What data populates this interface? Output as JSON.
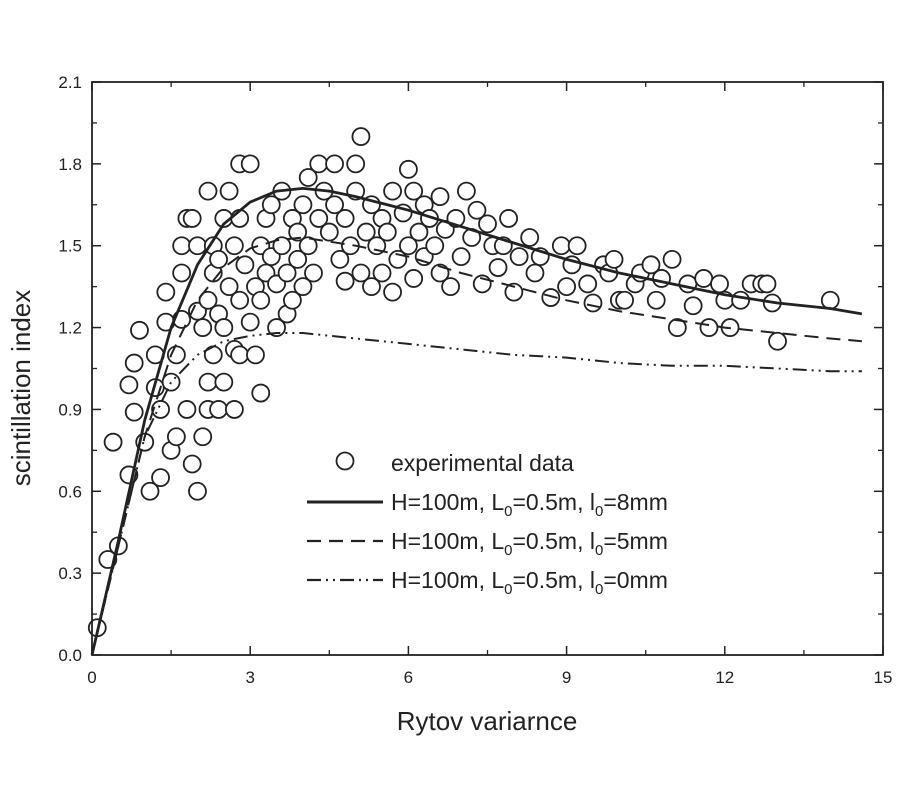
{
  "chart_data": {
    "type": "scatter",
    "xlabel": "Rytov variarnce",
    "ylabel": "scintillation index",
    "xlim": [
      0,
      15
    ],
    "ylim": [
      0,
      2.1
    ],
    "xticks": [
      0,
      3,
      6,
      9,
      12,
      15
    ],
    "yticks": [
      0.0,
      0.3,
      0.6,
      0.9,
      1.2,
      1.5,
      1.8,
      2.1
    ],
    "xtick_labels": [
      "0",
      "3",
      "6",
      "9",
      "12",
      "15"
    ],
    "ytick_labels": [
      "0.0",
      "0.3",
      "0.6",
      "0.9",
      "1.2",
      "1.5",
      "1.8",
      "2.1"
    ],
    "grid": false,
    "legend_position": "bottom-center",
    "series": [
      {
        "name": "experimental data",
        "kind": "markers",
        "marker": "open-circle",
        "points": [
          [
            0.1,
            0.1
          ],
          [
            0.3,
            0.35
          ],
          [
            0.4,
            0.78
          ],
          [
            0.5,
            0.4
          ],
          [
            0.7,
            0.66
          ],
          [
            0.7,
            0.99
          ],
          [
            0.8,
            0.89
          ],
          [
            0.8,
            1.07
          ],
          [
            0.9,
            1.19
          ],
          [
            1.0,
            0.78
          ],
          [
            1.1,
            0.6
          ],
          [
            1.2,
            0.98
          ],
          [
            1.2,
            1.1
          ],
          [
            1.3,
            0.65
          ],
          [
            1.3,
            0.9
          ],
          [
            1.4,
            1.33
          ],
          [
            1.4,
            1.22
          ],
          [
            1.5,
            0.75
          ],
          [
            1.5,
            1.0
          ],
          [
            1.6,
            1.1
          ],
          [
            1.6,
            0.8
          ],
          [
            1.7,
            1.23
          ],
          [
            1.7,
            1.4
          ],
          [
            1.7,
            1.5
          ],
          [
            1.8,
            0.9
          ],
          [
            1.8,
            1.6
          ],
          [
            1.9,
            0.7
          ],
          [
            1.9,
            1.6
          ],
          [
            2.0,
            0.6
          ],
          [
            2.0,
            1.26
          ],
          [
            2.0,
            1.5
          ],
          [
            2.1,
            0.8
          ],
          [
            2.1,
            1.2
          ],
          [
            2.2,
            0.9
          ],
          [
            2.2,
            1.0
          ],
          [
            2.2,
            1.3
          ],
          [
            2.2,
            1.7
          ],
          [
            2.3,
            1.1
          ],
          [
            2.3,
            1.4
          ],
          [
            2.3,
            1.5
          ],
          [
            2.4,
            0.9
          ],
          [
            2.4,
            1.25
          ],
          [
            2.4,
            1.45
          ],
          [
            2.5,
            1.0
          ],
          [
            2.5,
            1.2
          ],
          [
            2.5,
            1.6
          ],
          [
            2.6,
            1.35
          ],
          [
            2.6,
            1.7
          ],
          [
            2.7,
            0.9
          ],
          [
            2.7,
            1.12
          ],
          [
            2.7,
            1.5
          ],
          [
            2.8,
            1.1
          ],
          [
            2.8,
            1.3
          ],
          [
            2.8,
            1.6
          ],
          [
            2.8,
            1.8
          ],
          [
            2.9,
            1.43
          ],
          [
            3.0,
            1.22
          ],
          [
            3.0,
            1.8
          ],
          [
            3.1,
            1.1
          ],
          [
            3.1,
            1.35
          ],
          [
            3.2,
            0.96
          ],
          [
            3.2,
            1.3
          ],
          [
            3.2,
            1.5
          ],
          [
            3.3,
            1.4
          ],
          [
            3.3,
            1.6
          ],
          [
            3.4,
            1.46
          ],
          [
            3.4,
            1.65
          ],
          [
            3.5,
            1.2
          ],
          [
            3.5,
            1.36
          ],
          [
            3.6,
            1.5
          ],
          [
            3.6,
            1.7
          ],
          [
            3.7,
            1.25
          ],
          [
            3.7,
            1.4
          ],
          [
            3.8,
            1.3
          ],
          [
            3.8,
            1.6
          ],
          [
            3.9,
            1.45
          ],
          [
            3.9,
            1.55
          ],
          [
            4.0,
            1.35
          ],
          [
            4.0,
            1.65
          ],
          [
            4.1,
            1.5
          ],
          [
            4.1,
            1.75
          ],
          [
            4.2,
            1.4
          ],
          [
            4.3,
            1.6
          ],
          [
            4.3,
            1.8
          ],
          [
            4.4,
            1.7
          ],
          [
            4.5,
            1.55
          ],
          [
            4.6,
            1.65
          ],
          [
            4.6,
            1.8
          ],
          [
            4.7,
            1.45
          ],
          [
            4.8,
            1.37
          ],
          [
            4.8,
            1.6
          ],
          [
            4.9,
            1.5
          ],
          [
            5.0,
            1.7
          ],
          [
            5.0,
            1.8
          ],
          [
            5.1,
            1.4
          ],
          [
            5.1,
            1.9
          ],
          [
            5.2,
            1.55
          ],
          [
            5.3,
            1.35
          ],
          [
            5.3,
            1.65
          ],
          [
            5.4,
            1.5
          ],
          [
            5.5,
            1.4
          ],
          [
            5.5,
            1.6
          ],
          [
            5.6,
            1.55
          ],
          [
            5.7,
            1.33
          ],
          [
            5.7,
            1.7
          ],
          [
            5.8,
            1.45
          ],
          [
            5.9,
            1.62
          ],
          [
            6.0,
            1.5
          ],
          [
            6.0,
            1.78
          ],
          [
            6.1,
            1.38
          ],
          [
            6.1,
            1.7
          ],
          [
            6.2,
            1.55
          ],
          [
            6.3,
            1.46
          ],
          [
            6.3,
            1.65
          ],
          [
            6.4,
            1.6
          ],
          [
            6.5,
            1.5
          ],
          [
            6.6,
            1.4
          ],
          [
            6.6,
            1.68
          ],
          [
            6.7,
            1.56
          ],
          [
            6.8,
            1.35
          ],
          [
            6.9,
            1.6
          ],
          [
            7.0,
            1.46
          ],
          [
            7.1,
            1.7
          ],
          [
            7.2,
            1.53
          ],
          [
            7.3,
            1.63
          ],
          [
            7.4,
            1.36
          ],
          [
            7.5,
            1.58
          ],
          [
            7.6,
            1.5
          ],
          [
            7.7,
            1.42
          ],
          [
            7.8,
            1.5
          ],
          [
            7.9,
            1.6
          ],
          [
            8.0,
            1.33
          ],
          [
            8.1,
            1.46
          ],
          [
            8.3,
            1.53
          ],
          [
            8.4,
            1.4
          ],
          [
            8.5,
            1.46
          ],
          [
            8.7,
            1.31
          ],
          [
            8.9,
            1.5
          ],
          [
            9.0,
            1.35
          ],
          [
            9.1,
            1.43
          ],
          [
            9.2,
            1.5
          ],
          [
            9.4,
            1.36
          ],
          [
            9.5,
            1.29
          ],
          [
            9.7,
            1.43
          ],
          [
            9.8,
            1.4
          ],
          [
            9.9,
            1.45
          ],
          [
            10.0,
            1.3
          ],
          [
            10.1,
            1.3
          ],
          [
            10.3,
            1.36
          ],
          [
            10.4,
            1.4
          ],
          [
            10.6,
            1.43
          ],
          [
            10.7,
            1.3
          ],
          [
            10.8,
            1.38
          ],
          [
            11.0,
            1.45
          ],
          [
            11.1,
            1.2
          ],
          [
            11.3,
            1.36
          ],
          [
            11.4,
            1.28
          ],
          [
            11.6,
            1.38
          ],
          [
            11.7,
            1.2
          ],
          [
            11.9,
            1.36
          ],
          [
            12.0,
            1.3
          ],
          [
            12.1,
            1.2
          ],
          [
            12.3,
            1.3
          ],
          [
            12.5,
            1.36
          ],
          [
            12.7,
            1.36
          ],
          [
            12.8,
            1.36
          ],
          [
            12.9,
            1.29
          ],
          [
            13.0,
            1.15
          ],
          [
            14.0,
            1.3
          ]
        ]
      },
      {
        "name": "H=100m, L0=0.5m, l0=8mm",
        "kind": "line",
        "style": "solid",
        "points": [
          [
            0,
            0.0
          ],
          [
            0.5,
            0.42
          ],
          [
            1.0,
            0.86
          ],
          [
            1.5,
            1.2
          ],
          [
            2.0,
            1.43
          ],
          [
            2.5,
            1.58
          ],
          [
            3.0,
            1.66
          ],
          [
            3.5,
            1.7
          ],
          [
            4.0,
            1.71
          ],
          [
            4.5,
            1.7
          ],
          [
            5.0,
            1.68
          ],
          [
            6.0,
            1.63
          ],
          [
            7.0,
            1.57
          ],
          [
            8.0,
            1.51
          ],
          [
            9.0,
            1.45
          ],
          [
            10.0,
            1.4
          ],
          [
            11.0,
            1.36
          ],
          [
            12.0,
            1.32
          ],
          [
            13.0,
            1.29
          ],
          [
            14.0,
            1.27
          ],
          [
            14.6,
            1.25
          ]
        ]
      },
      {
        "name": "H=100m, L0=0.5m, l0=5mm",
        "kind": "line",
        "style": "dashed",
        "points": [
          [
            0,
            0.0
          ],
          [
            0.5,
            0.4
          ],
          [
            1.0,
            0.8
          ],
          [
            1.5,
            1.1
          ],
          [
            2.0,
            1.3
          ],
          [
            2.5,
            1.42
          ],
          [
            3.0,
            1.49
          ],
          [
            3.5,
            1.52
          ],
          [
            4.0,
            1.53
          ],
          [
            5.0,
            1.5
          ],
          [
            6.0,
            1.46
          ],
          [
            7.0,
            1.4
          ],
          [
            8.0,
            1.35
          ],
          [
            9.0,
            1.3
          ],
          [
            10.0,
            1.26
          ],
          [
            11.0,
            1.23
          ],
          [
            12.0,
            1.2
          ],
          [
            13.0,
            1.18
          ],
          [
            14.0,
            1.16
          ],
          [
            14.6,
            1.15
          ]
        ]
      },
      {
        "name": "H=100m, L0=0.5m, l0=0mm",
        "kind": "line",
        "style": "dash-dot-dot",
        "points": [
          [
            0,
            0.0
          ],
          [
            0.5,
            0.4
          ],
          [
            1.0,
            0.8
          ],
          [
            1.5,
            1.0
          ],
          [
            2.0,
            1.1
          ],
          [
            2.5,
            1.15
          ],
          [
            3.0,
            1.17
          ],
          [
            3.5,
            1.18
          ],
          [
            4.0,
            1.18
          ],
          [
            5.0,
            1.16
          ],
          [
            6.0,
            1.14
          ],
          [
            7.0,
            1.12
          ],
          [
            8.0,
            1.1
          ],
          [
            9.0,
            1.09
          ],
          [
            10.0,
            1.07
          ],
          [
            11.0,
            1.06
          ],
          [
            12.0,
            1.06
          ],
          [
            13.0,
            1.05
          ],
          [
            14.0,
            1.04
          ],
          [
            14.6,
            1.04
          ]
        ]
      }
    ],
    "legend": [
      {
        "marker": "open-circle",
        "main": "experimental data"
      },
      {
        "line": "solid",
        "main": "H=100m, L",
        "sub1": "0",
        "mid": "=0.5m, l",
        "sub2": "0",
        "tail": "=8mm"
      },
      {
        "line": "dashed",
        "main": "H=100m, L",
        "sub1": "0",
        "mid": "=0.5m, l",
        "sub2": "0",
        "tail": "=5mm"
      },
      {
        "line": "dash-dot-dot",
        "main": "H=100m, L",
        "sub1": "0",
        "mid": "=0.5m, l",
        "sub2": "0",
        "tail": "=0mm"
      }
    ]
  }
}
